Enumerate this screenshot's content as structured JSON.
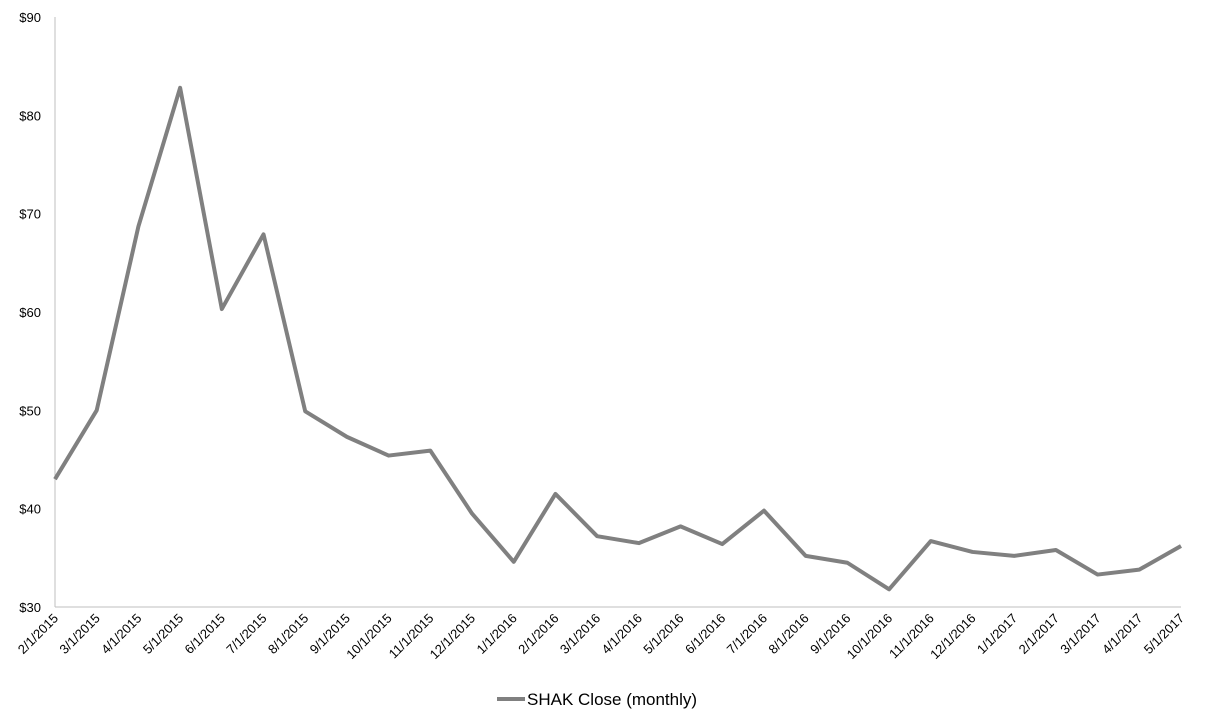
{
  "chart_data": {
    "type": "line",
    "categories": [
      "2/1/2015",
      "3/1/2015",
      "4/1/2015",
      "5/1/2015",
      "6/1/2015",
      "7/1/2015",
      "8/1/2015",
      "9/1/2015",
      "10/1/2015",
      "11/1/2015",
      "12/1/2015",
      "1/1/2016",
      "2/1/2016",
      "3/1/2016",
      "4/1/2016",
      "5/1/2016",
      "6/1/2016",
      "7/1/2016",
      "8/1/2016",
      "9/1/2016",
      "10/1/2016",
      "11/1/2016",
      "12/1/2016",
      "1/1/2017",
      "2/1/2017",
      "3/1/2017",
      "4/1/2017",
      "5/1/2017"
    ],
    "series": [
      {
        "name": "SHAK Close (monthly)",
        "color": "#808080",
        "values": [
          43.0,
          50.0,
          68.7,
          82.8,
          60.3,
          67.9,
          49.9,
          47.3,
          45.4,
          45.9,
          39.5,
          34.6,
          41.5,
          37.2,
          36.5,
          38.2,
          36.4,
          39.8,
          35.2,
          34.5,
          31.8,
          36.7,
          35.6,
          35.2,
          35.8,
          33.3,
          33.8,
          36.2
        ]
      }
    ],
    "ylim": [
      30,
      90
    ],
    "yticks": [
      {
        "value": 30,
        "label": "$30"
      },
      {
        "value": 40,
        "label": "$40"
      },
      {
        "value": 50,
        "label": "$50"
      },
      {
        "value": 60,
        "label": "$60"
      },
      {
        "value": 70,
        "label": "$70"
      },
      {
        "value": 80,
        "label": "$80"
      },
      {
        "value": 90,
        "label": "$90"
      }
    ],
    "grid": false,
    "legend": "bottom"
  }
}
